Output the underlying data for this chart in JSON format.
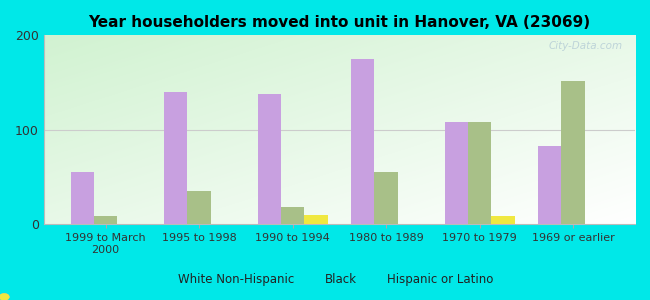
{
  "title": "Year householders moved into unit in Hanover, VA (23069)",
  "categories": [
    "1999 to March\n2000",
    "1995 to 1998",
    "1990 to 1994",
    "1980 to 1989",
    "1970 to 1979",
    "1969 or earlier"
  ],
  "white": [
    55,
    140,
    138,
    175,
    108,
    82
  ],
  "black": [
    8,
    35,
    18,
    55,
    108,
    152
  ],
  "hispanic": [
    0,
    0,
    9,
    0,
    8,
    0
  ],
  "white_color": "#c8a0e0",
  "black_color": "#a8c088",
  "hispanic_color": "#f0e840",
  "bg_color": "#00e8e8",
  "ylim": [
    0,
    200
  ],
  "yticks": [
    0,
    100,
    200
  ],
  "bar_width": 0.25,
  "watermark": "City-Data.com"
}
